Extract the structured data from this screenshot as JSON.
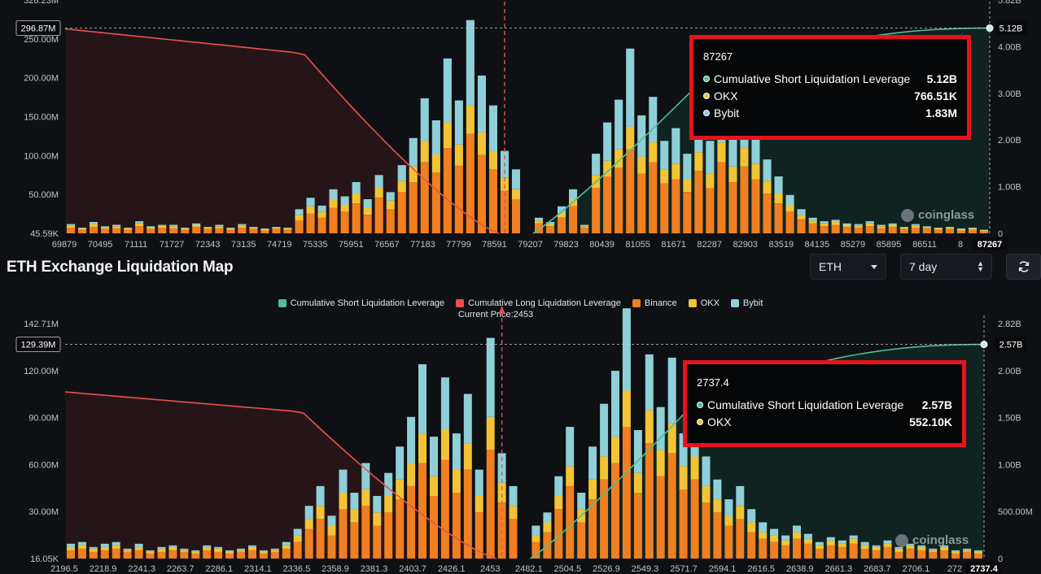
{
  "section": {
    "title": "ETH Exchange Liquidation Map",
    "asset_select": "ETH",
    "range_select": "7 day"
  },
  "colors": {
    "background": "#0e1014",
    "long_line": "#e8514f",
    "short_line": "#4fbf98",
    "binance": "#ef7f20",
    "okx": "#f2c435",
    "bybit": "#8ecfd8",
    "tooltip_border": "#e8121b"
  },
  "legend": {
    "short": "Cumulative Short Liquidation Leverage",
    "long": "Cumulative Long Liquidation Leverage",
    "binance": "Binance",
    "okx": "OKX",
    "bybit": "Bybit"
  },
  "current_price_label": "Current Price:2453",
  "watermark": "coinglass",
  "tooltips": {
    "top": {
      "title": "87267",
      "rows": [
        {
          "label": "Cumulative Short Liquidation Leverage",
          "value": "5.12B"
        },
        {
          "label": "OKX",
          "value": "766.51K"
        },
        {
          "label": "Bybit",
          "value": "1.83M"
        }
      ]
    },
    "bottom": {
      "title": "2737.4",
      "rows": [
        {
          "label": "Cumulative Short Liquidation Leverage",
          "value": "2.57B"
        },
        {
          "label": "OKX",
          "value": "552.10K"
        }
      ]
    }
  },
  "chart_data": [
    {
      "type": "bar",
      "asset": "BTC",
      "x_tick_labels": [
        "69879",
        "70495",
        "71111",
        "71727",
        "72343",
        "73135",
        "74719",
        "75335",
        "75951",
        "76567",
        "77183",
        "77799",
        "78591",
        "79207",
        "79823",
        "80439",
        "81055",
        "81671",
        "82287",
        "82903",
        "83519",
        "84135",
        "85279",
        "85895",
        "86511",
        "8"
      ],
      "x_end_label": "87267",
      "y_left_ticks": [
        "45.59K",
        "50.00M",
        "100.00M",
        "150.00M",
        "200.00M",
        "250.00M",
        "328.23M"
      ],
      "y_left_ylim": [
        0,
        328.23
      ],
      "y_right_ticks": [
        "0",
        "1.00B",
        "2.00B",
        "3.00B",
        "4.00B",
        "5.82B"
      ],
      "y_right_ylim": [
        0,
        5.82
      ],
      "crosshair_left_label": "296.87M",
      "crosshair_right_label": "5.12B",
      "current_price_index": 38.5,
      "long_peak_billion": 5.1,
      "short_max_billion": 5.12,
      "bars_millions": [
        [
          8,
          3,
          2
        ],
        [
          5,
          2,
          1
        ],
        [
          9,
          4,
          3
        ],
        [
          6,
          3,
          1
        ],
        [
          7,
          3,
          2
        ],
        [
          5,
          2,
          1
        ],
        [
          10,
          4,
          3
        ],
        [
          6,
          2,
          2
        ],
        [
          8,
          3,
          1
        ],
        [
          7,
          3,
          2
        ],
        [
          5,
          2,
          1
        ],
        [
          9,
          3,
          2
        ],
        [
          6,
          2,
          1
        ],
        [
          7,
          3,
          2
        ],
        [
          5,
          2,
          1
        ],
        [
          8,
          3,
          2
        ],
        [
          6,
          2,
          1
        ],
        [
          4,
          2,
          1
        ],
        [
          6,
          2,
          1
        ],
        [
          5,
          2,
          1
        ],
        [
          18,
          8,
          8
        ],
        [
          28,
          10,
          12
        ],
        [
          22,
          8,
          9
        ],
        [
          36,
          12,
          14
        ],
        [
          30,
          10,
          12
        ],
        [
          42,
          14,
          16
        ],
        [
          26,
          10,
          12
        ],
        [
          50,
          14,
          18
        ],
        [
          34,
          12,
          12
        ],
        [
          58,
          16,
          22
        ],
        [
          72,
          22,
          40
        ],
        [
          100,
          30,
          60
        ],
        [
          85,
          26,
          48
        ],
        [
          120,
          36,
          90
        ],
        [
          95,
          30,
          62
        ],
        [
          140,
          40,
          120
        ],
        [
          110,
          32,
          80
        ],
        [
          90,
          26,
          64
        ],
        [
          60,
          18,
          38
        ],
        [
          48,
          14,
          28
        ],
        [
          0,
          0,
          0
        ],
        [
          14,
          4,
          4
        ],
        [
          10,
          3,
          3
        ],
        [
          22,
          6,
          10
        ],
        [
          38,
          10,
          14
        ],
        [
          8,
          2,
          2
        ],
        [
          64,
          18,
          30
        ],
        [
          80,
          22,
          54
        ],
        [
          92,
          26,
          70
        ],
        [
          118,
          32,
          110
        ],
        [
          84,
          24,
          58
        ],
        [
          100,
          28,
          64
        ],
        [
          70,
          20,
          40
        ],
        [
          76,
          22,
          50
        ],
        [
          58,
          18,
          36
        ],
        [
          88,
          26,
          62
        ],
        [
          64,
          20,
          46
        ],
        [
          100,
          28,
          60
        ],
        [
          72,
          22,
          50
        ],
        [
          94,
          26,
          64
        ],
        [
          76,
          22,
          54
        ],
        [
          56,
          18,
          30
        ],
        [
          42,
          14,
          24
        ],
        [
          30,
          10,
          14
        ],
        [
          20,
          6,
          8
        ],
        [
          14,
          4,
          4
        ],
        [
          10,
          4,
          3
        ],
        [
          12,
          4,
          3
        ],
        [
          9,
          3,
          2
        ],
        [
          8,
          3,
          2
        ],
        [
          10,
          4,
          3
        ],
        [
          7,
          3,
          2
        ],
        [
          9,
          3,
          2
        ],
        [
          6,
          2,
          1
        ],
        [
          8,
          3,
          2
        ],
        [
          7,
          2,
          1
        ],
        [
          5,
          2,
          1
        ],
        [
          6,
          2,
          1
        ],
        [
          4,
          2,
          1
        ],
        [
          5,
          2,
          1
        ],
        [
          3,
          1,
          1
        ]
      ]
    },
    {
      "type": "bar",
      "asset": "ETH",
      "x_tick_labels": [
        "2196.5",
        "2218.9",
        "2241.3",
        "2263.7",
        "2286.1",
        "2314.1",
        "2336.5",
        "2358.9",
        "2381.3",
        "2403.7",
        "2426.1",
        "2453",
        "2482.1",
        "2504.5",
        "2526.9",
        "2549.3",
        "2571.7",
        "2594.1",
        "2616.5",
        "2638.9",
        "2661.3",
        "2683.7",
        "2706.1",
        "272"
      ],
      "x_end_label": "2737.4",
      "y_left_ticks": [
        "16.05K",
        "30.00M",
        "60.00M",
        "90.00M",
        "120.00M",
        "142.71M"
      ],
      "y_left_ylim": [
        0,
        142.71
      ],
      "y_right_ticks": [
        "0",
        "500.00M",
        "1.00B",
        "1.50B",
        "2.00B",
        "2.82B"
      ],
      "y_right_ylim": [
        0,
        2.82
      ],
      "crosshair_left_label": "129.39M",
      "crosshair_right_label": "2.57B",
      "current_price": 2453,
      "current_price_index": 38.5,
      "long_peak_billion": 2.0,
      "short_max_billion": 2.57,
      "bars_millions": [
        [
          5,
          2,
          2
        ],
        [
          6,
          2,
          2
        ],
        [
          4,
          2,
          1
        ],
        [
          5,
          2,
          2
        ],
        [
          6,
          2,
          2
        ],
        [
          4,
          1,
          1
        ],
        [
          5,
          2,
          2
        ],
        [
          3,
          1,
          1
        ],
        [
          4,
          2,
          1
        ],
        [
          5,
          2,
          1
        ],
        [
          4,
          1,
          1
        ],
        [
          3,
          1,
          1
        ],
        [
          5,
          2,
          1
        ],
        [
          4,
          2,
          1
        ],
        [
          3,
          1,
          1
        ],
        [
          4,
          1,
          1
        ],
        [
          5,
          2,
          1
        ],
        [
          3,
          1,
          1
        ],
        [
          4,
          1,
          1
        ],
        [
          6,
          2,
          2
        ],
        [
          10,
          4,
          4
        ],
        [
          18,
          6,
          8
        ],
        [
          24,
          8,
          12
        ],
        [
          14,
          6,
          6
        ],
        [
          30,
          10,
          14
        ],
        [
          22,
          8,
          10
        ],
        [
          32,
          10,
          16
        ],
        [
          20,
          8,
          10
        ],
        [
          28,
          10,
          14
        ],
        [
          36,
          12,
          20
        ],
        [
          44,
          14,
          28
        ],
        [
          58,
          18,
          42
        ],
        [
          38,
          12,
          24
        ],
        [
          60,
          18,
          32
        ],
        [
          40,
          14,
          22
        ],
        [
          54,
          16,
          30
        ],
        [
          28,
          10,
          16
        ],
        [
          66,
          20,
          48
        ],
        [
          34,
          12,
          18
        ],
        [
          24,
          8,
          12
        ],
        [
          0,
          0,
          0
        ],
        [
          10,
          4,
          6
        ],
        [
          16,
          6,
          6
        ],
        [
          30,
          8,
          12
        ],
        [
          44,
          12,
          24
        ],
        [
          22,
          8,
          10
        ],
        [
          36,
          12,
          20
        ],
        [
          48,
          14,
          32
        ],
        [
          58,
          16,
          40
        ],
        [
          80,
          22,
          50
        ],
        [
          40,
          12,
          26
        ],
        [
          70,
          20,
          34
        ],
        [
          50,
          16,
          26
        ],
        [
          64,
          18,
          40
        ],
        [
          42,
          14,
          20
        ],
        [
          48,
          14,
          26
        ],
        [
          34,
          10,
          18
        ],
        [
          28,
          8,
          12
        ],
        [
          20,
          6,
          10
        ],
        [
          24,
          8,
          12
        ],
        [
          16,
          6,
          8
        ],
        [
          12,
          4,
          6
        ],
        [
          10,
          4,
          4
        ],
        [
          8,
          3,
          3
        ],
        [
          12,
          4,
          4
        ],
        [
          9,
          3,
          3
        ],
        [
          6,
          2,
          2
        ],
        [
          8,
          3,
          2
        ],
        [
          7,
          2,
          2
        ],
        [
          9,
          3,
          2
        ],
        [
          6,
          2,
          2
        ],
        [
          5,
          2,
          1
        ],
        [
          7,
          2,
          2
        ],
        [
          4,
          2,
          1
        ],
        [
          6,
          2,
          1
        ],
        [
          5,
          2,
          1
        ],
        [
          4,
          1,
          1
        ],
        [
          5,
          2,
          1
        ],
        [
          3,
          1,
          1
        ],
        [
          4,
          1,
          1
        ],
        [
          3,
          1,
          1
        ]
      ]
    }
  ]
}
